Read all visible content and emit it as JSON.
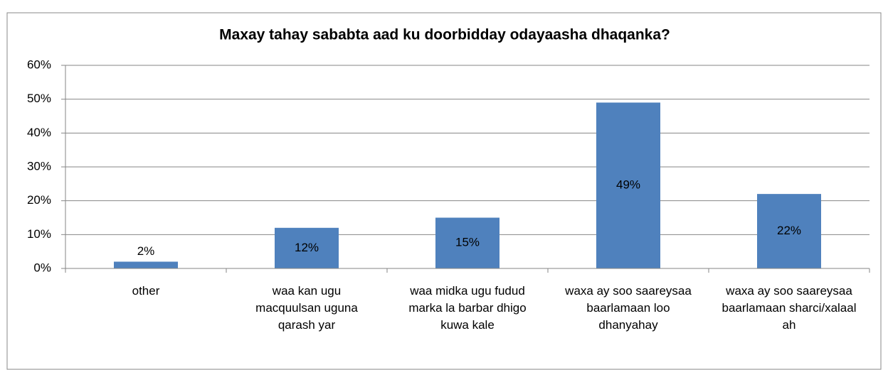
{
  "chart_data": {
    "type": "bar",
    "title": "Maxay tahay sababta aad ku doorbidday odayaasha dhaqanka?",
    "categories": [
      "other",
      "waa kan ugu macquulsan uguna qarash yar",
      "waa midka ugu fudud marka la barbar dhigo kuwa kale",
      "waxa ay soo saareysaa baarlamaan loo dhanyahay",
      "waxa ay soo saareysaa baarlamaan sharci/xalaal ah"
    ],
    "values": [
      2,
      12,
      15,
      49,
      22
    ],
    "value_labels": [
      "2%",
      "12%",
      "15%",
      "49%",
      "22%"
    ],
    "color": "#4f81bd",
    "ylim": [
      0,
      60
    ],
    "yticks": [
      {
        "value": 0,
        "label": "0%"
      },
      {
        "value": 10,
        "label": "10%"
      },
      {
        "value": 20,
        "label": "20%"
      },
      {
        "value": 30,
        "label": "30%"
      },
      {
        "value": 40,
        "label": "40%"
      },
      {
        "value": 50,
        "label": "50%"
      },
      {
        "value": 60,
        "label": "60%"
      }
    ],
    "grid": true
  }
}
